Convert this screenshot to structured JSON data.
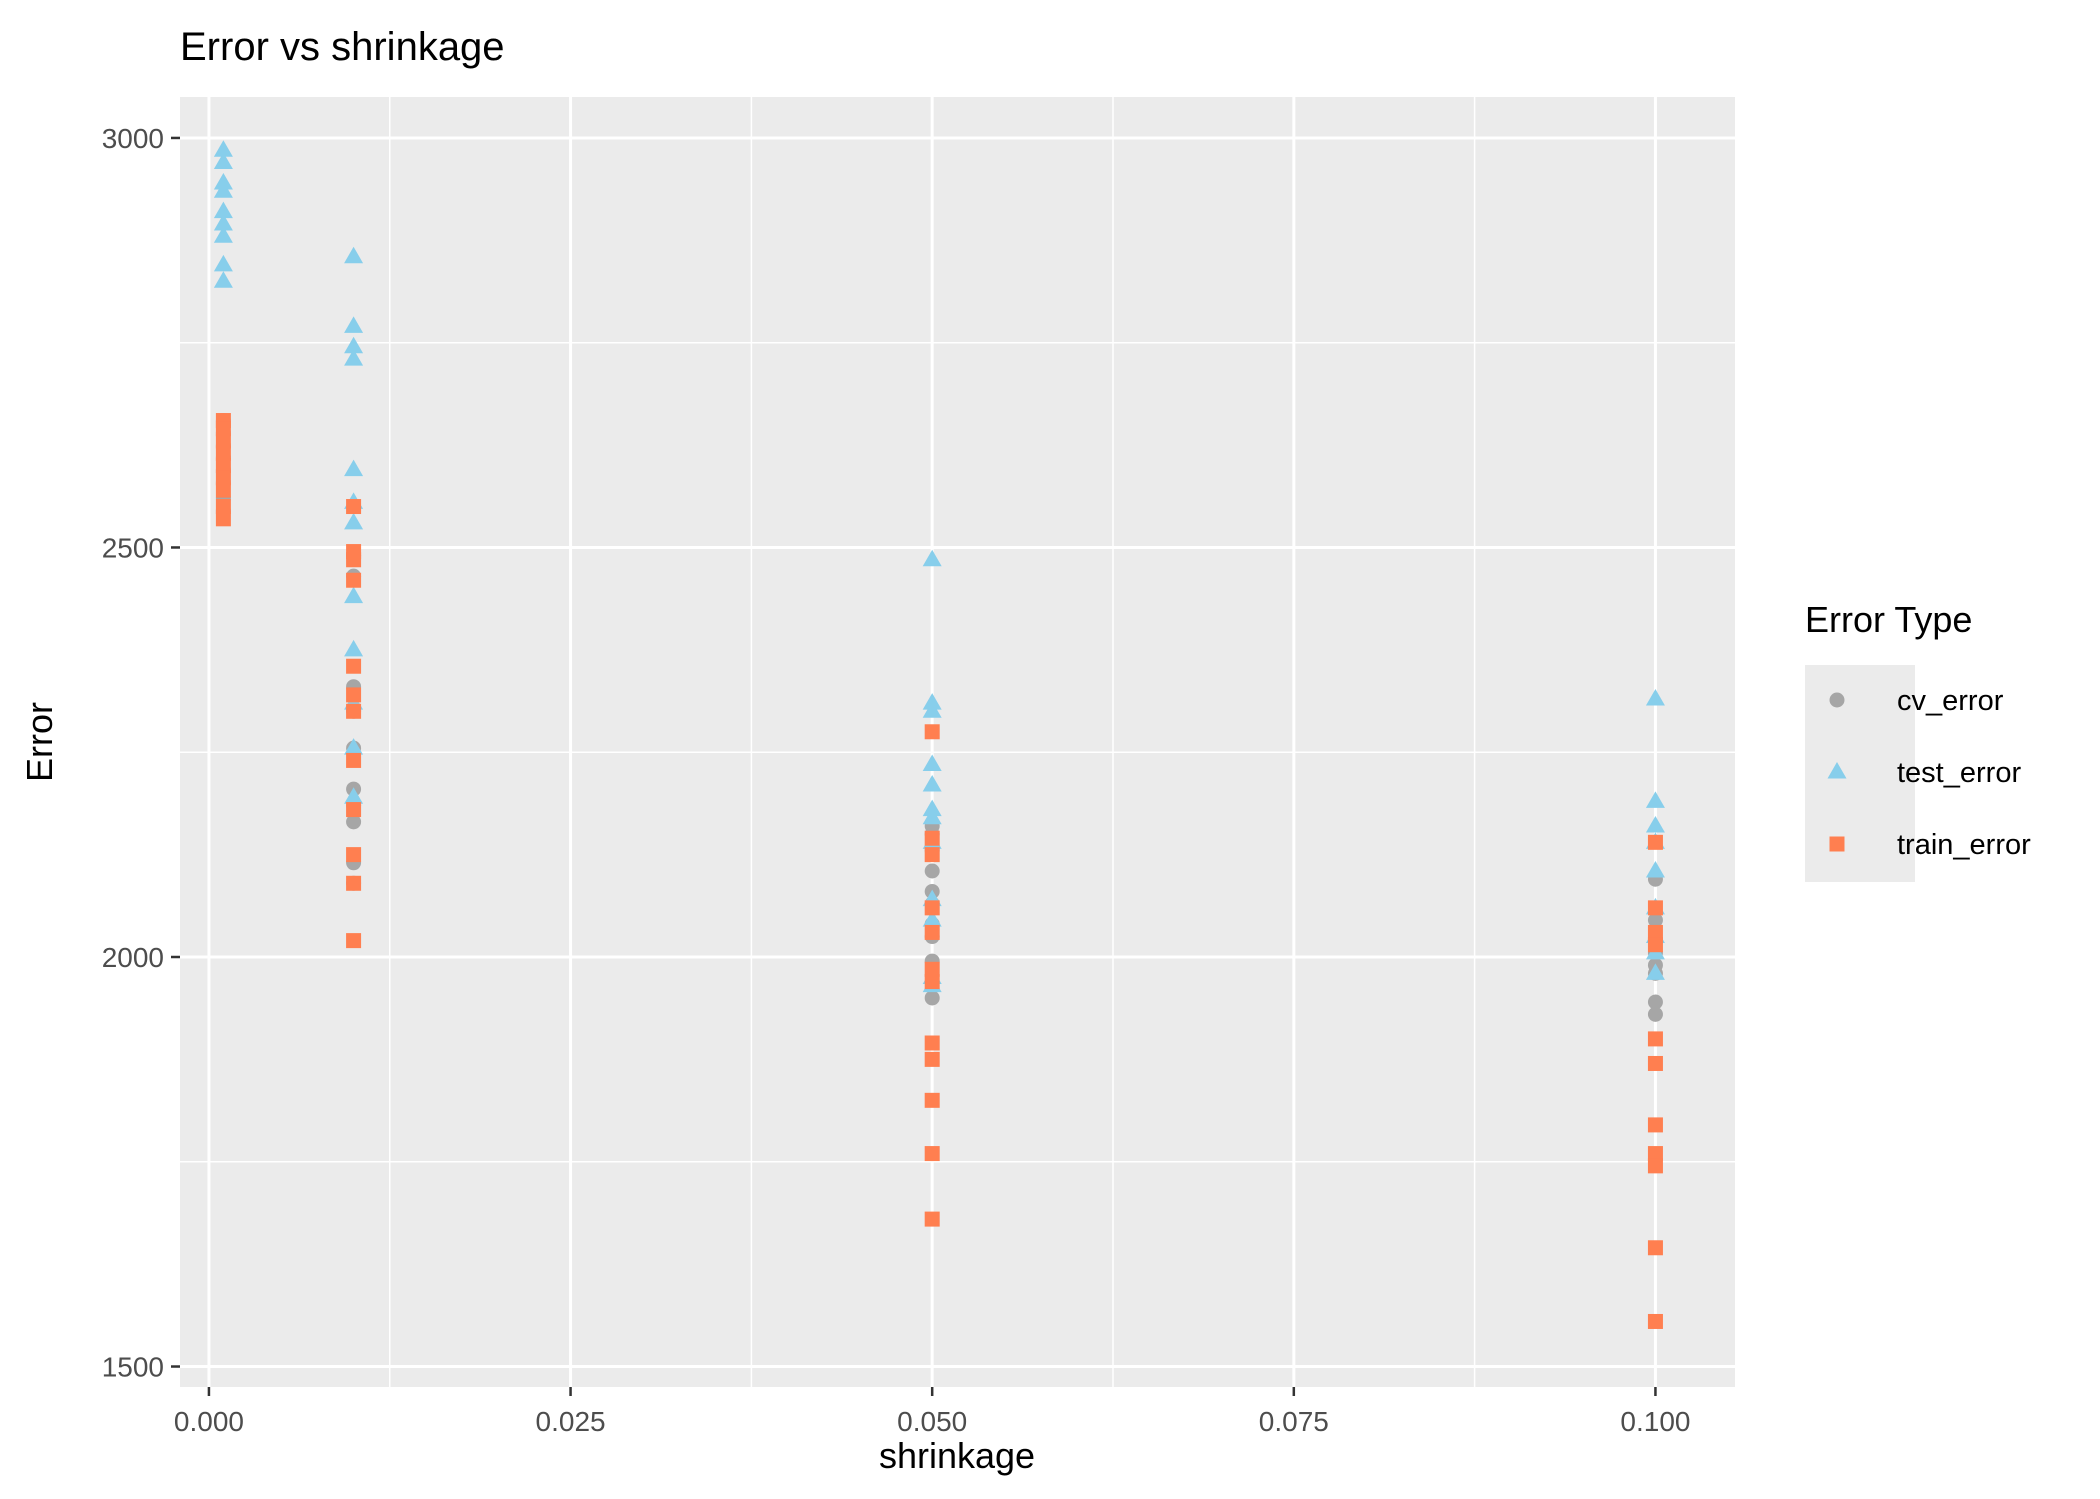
{
  "chart_data": {
    "type": "scatter",
    "title": "Error vs shrinkage",
    "xlabel": "shrinkage",
    "ylabel": "Error",
    "xlim": [
      -0.002,
      0.1055
    ],
    "ylim": [
      1475,
      3050
    ],
    "x_ticks": [
      0.0,
      0.025,
      0.05,
      0.075,
      0.1
    ],
    "x_tick_labels": [
      "0.000",
      "0.025",
      "0.050",
      "0.075",
      "0.100"
    ],
    "y_ticks": [
      1500,
      2000,
      2500,
      3000
    ],
    "y_tick_labels": [
      "1500",
      "2000",
      "2500",
      "3000"
    ],
    "grid": true,
    "legend": {
      "title": "Error Type",
      "position": "right"
    },
    "series": [
      {
        "name": "cv_error",
        "shape": "circle",
        "color": "#a6a6a6",
        "points": [
          [
            0.001,
            2655
          ],
          [
            0.001,
            2640
          ],
          [
            0.001,
            2625
          ],
          [
            0.001,
            2610
          ],
          [
            0.001,
            2595
          ],
          [
            0.001,
            2580
          ],
          [
            0.001,
            2560
          ],
          [
            0.001,
            2545
          ],
          [
            0.01,
            2490
          ],
          [
            0.01,
            2465
          ],
          [
            0.01,
            2330
          ],
          [
            0.01,
            2300
          ],
          [
            0.01,
            2255
          ],
          [
            0.01,
            2205
          ],
          [
            0.01,
            2185
          ],
          [
            0.01,
            2165
          ],
          [
            0.01,
            2115
          ],
          [
            0.01,
            2090
          ],
          [
            0.05,
            2160
          ],
          [
            0.05,
            2150
          ],
          [
            0.05,
            2130
          ],
          [
            0.05,
            2105
          ],
          [
            0.05,
            2080
          ],
          [
            0.05,
            2065
          ],
          [
            0.05,
            2040
          ],
          [
            0.05,
            2025
          ],
          [
            0.05,
            1995
          ],
          [
            0.05,
            1950
          ],
          [
            0.1,
            2095
          ],
          [
            0.1,
            2045
          ],
          [
            0.1,
            2020
          ],
          [
            0.1,
            2005
          ],
          [
            0.1,
            1990
          ],
          [
            0.1,
            1980
          ],
          [
            0.1,
            1945
          ],
          [
            0.1,
            1930
          ]
        ]
      },
      {
        "name": "test_error",
        "shape": "triangle",
        "color": "#87ceeb",
        "points": [
          [
            0.001,
            2985
          ],
          [
            0.001,
            2970
          ],
          [
            0.001,
            2945
          ],
          [
            0.001,
            2935
          ],
          [
            0.001,
            2910
          ],
          [
            0.001,
            2895
          ],
          [
            0.001,
            2880
          ],
          [
            0.001,
            2845
          ],
          [
            0.001,
            2825
          ],
          [
            0.01,
            2855
          ],
          [
            0.01,
            2770
          ],
          [
            0.01,
            2745
          ],
          [
            0.01,
            2730
          ],
          [
            0.01,
            2595
          ],
          [
            0.01,
            2555
          ],
          [
            0.01,
            2530
          ],
          [
            0.01,
            2440
          ],
          [
            0.01,
            2375
          ],
          [
            0.01,
            2310
          ],
          [
            0.01,
            2255
          ],
          [
            0.01,
            2195
          ],
          [
            0.05,
            2485
          ],
          [
            0.05,
            2310
          ],
          [
            0.05,
            2300
          ],
          [
            0.05,
            2235
          ],
          [
            0.05,
            2210
          ],
          [
            0.05,
            2180
          ],
          [
            0.05,
            2170
          ],
          [
            0.05,
            2140
          ],
          [
            0.05,
            2070
          ],
          [
            0.05,
            2045
          ],
          [
            0.05,
            1975
          ],
          [
            0.05,
            1965
          ],
          [
            0.1,
            2315
          ],
          [
            0.1,
            2190
          ],
          [
            0.1,
            2160
          ],
          [
            0.1,
            2140
          ],
          [
            0.1,
            2105
          ],
          [
            0.1,
            2060
          ],
          [
            0.1,
            2025
          ],
          [
            0.1,
            2005
          ],
          [
            0.1,
            1980
          ]
        ]
      },
      {
        "name": "train_error",
        "shape": "square",
        "color": "#ff7f50",
        "points": [
          [
            0.001,
            2655
          ],
          [
            0.001,
            2645
          ],
          [
            0.001,
            2630
          ],
          [
            0.001,
            2615
          ],
          [
            0.001,
            2600
          ],
          [
            0.001,
            2585
          ],
          [
            0.001,
            2570
          ],
          [
            0.001,
            2550
          ],
          [
            0.001,
            2535
          ],
          [
            0.01,
            2550
          ],
          [
            0.01,
            2495
          ],
          [
            0.01,
            2485
          ],
          [
            0.01,
            2460
          ],
          [
            0.01,
            2355
          ],
          [
            0.01,
            2320
          ],
          [
            0.01,
            2300
          ],
          [
            0.01,
            2240
          ],
          [
            0.01,
            2180
          ],
          [
            0.01,
            2125
          ],
          [
            0.01,
            2090
          ],
          [
            0.01,
            2020
          ],
          [
            0.05,
            2275
          ],
          [
            0.05,
            2145
          ],
          [
            0.05,
            2125
          ],
          [
            0.05,
            2060
          ],
          [
            0.05,
            2030
          ],
          [
            0.05,
            1985
          ],
          [
            0.05,
            1970
          ],
          [
            0.05,
            1895
          ],
          [
            0.05,
            1875
          ],
          [
            0.05,
            1825
          ],
          [
            0.05,
            1760
          ],
          [
            0.05,
            1680
          ],
          [
            0.1,
            2140
          ],
          [
            0.1,
            2060
          ],
          [
            0.1,
            2030
          ],
          [
            0.1,
            2015
          ],
          [
            0.1,
            1900
          ],
          [
            0.1,
            1870
          ],
          [
            0.1,
            1795
          ],
          [
            0.1,
            1760
          ],
          [
            0.1,
            1745
          ],
          [
            0.1,
            1645
          ],
          [
            0.1,
            1555
          ]
        ]
      }
    ]
  }
}
